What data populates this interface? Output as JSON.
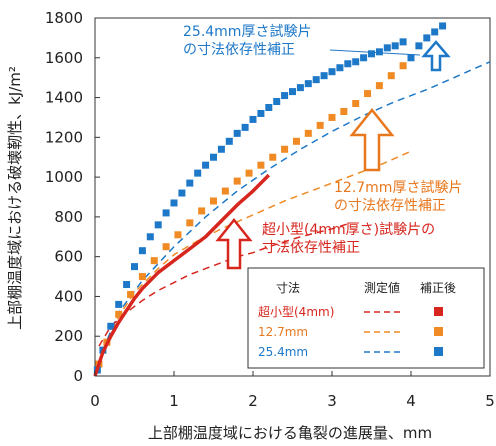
{
  "chart_data": {
    "type": "scatter",
    "xlabel": "上部棚温度域における亀裂の進展量、mm",
    "ylabel": "上部棚温度域における破壊靭性、kJ/m²",
    "xlim": [
      0,
      5
    ],
    "ylim": [
      0,
      1800
    ],
    "x_ticks": [
      "0",
      "1",
      "2",
      "3",
      "4",
      "5"
    ],
    "y_ticks": [
      "0",
      "200",
      "400",
      "600",
      "800",
      "1000",
      "1200",
      "1400",
      "1600",
      "1800"
    ],
    "grid": false,
    "legend": {
      "position": "bottom-right",
      "header_size": "寸法",
      "header_measured": "測定値",
      "header_corrected": "補正後",
      "entries": [
        "超小型(4mm)",
        "12.7mm",
        "25.4mm"
      ]
    },
    "annotations": [
      {
        "id": "a25",
        "lines": [
          "25.4mm厚さ試験片",
          "の寸法依存性補正"
        ],
        "color": "#1e78c8"
      },
      {
        "id": "a12",
        "lines": [
          "12.7mm厚さ試験片",
          "の寸法依存性補正"
        ],
        "color": "#e8781e"
      },
      {
        "id": "amini",
        "lines": [
          "超小型(4mm厚さ)試験片の",
          "寸法依存性補正"
        ],
        "color": "#d7261e"
      }
    ],
    "colors": {
      "mini": "#d7261e",
      "s12": "#f08a24",
      "s25": "#1e78c8"
    },
    "series": [
      {
        "id": "mini-measured",
        "kind": "dashed-line",
        "color": "#d7261e",
        "x": [
          0.05,
          0.2,
          0.4,
          0.6,
          0.8,
          1.0,
          1.2,
          1.4,
          1.6,
          1.8,
          2.0,
          2.2,
          2.4,
          2.6,
          2.8,
          3.0,
          3.2
        ],
        "y": [
          150,
          250,
          320,
          380,
          430,
          470,
          510,
          540,
          570,
          600,
          620,
          650,
          675,
          700,
          720,
          740,
          765
        ]
      },
      {
        "id": "mini-corrected",
        "kind": "thick-line",
        "color": "#d7261e",
        "x": [
          0.0,
          0.1,
          0.2,
          0.3,
          0.4,
          0.5,
          0.6,
          0.8,
          1.0,
          1.2,
          1.4,
          1.6,
          1.8,
          2.0,
          2.2
        ],
        "y": [
          0,
          120,
          200,
          270,
          330,
          390,
          440,
          520,
          580,
          640,
          700,
          780,
          860,
          930,
          1010
        ]
      },
      {
        "id": "s12-measured",
        "kind": "dashed-line",
        "color": "#f08a24",
        "x": [
          0.1,
          0.3,
          0.5,
          0.8,
          1.0,
          1.3,
          1.6,
          2.0,
          2.4,
          2.8,
          3.2,
          3.6,
          4.0
        ],
        "y": [
          120,
          300,
          420,
          540,
          610,
          680,
          740,
          810,
          880,
          940,
          1000,
          1060,
          1130
        ]
      },
      {
        "id": "s12-corrected",
        "kind": "squares",
        "color": "#f08a24",
        "x": [
          0.05,
          0.15,
          0.3,
          0.45,
          0.6,
          0.75,
          0.9,
          1.05,
          1.2,
          1.35,
          1.5,
          1.65,
          1.8,
          1.95,
          2.1,
          2.25,
          2.4,
          2.55,
          2.7,
          2.85,
          3.0,
          3.15,
          3.3,
          3.45,
          3.6,
          3.75,
          3.9
        ],
        "y": [
          60,
          170,
          310,
          410,
          500,
          580,
          650,
          710,
          770,
          830,
          880,
          930,
          980,
          1020,
          1060,
          1100,
          1140,
          1180,
          1220,
          1260,
          1300,
          1330,
          1370,
          1420,
          1460,
          1510,
          1560
        ]
      },
      {
        "id": "s25-measured",
        "kind": "dashed-line",
        "color": "#1e78c8",
        "x": [
          0.1,
          0.3,
          0.6,
          1.0,
          1.4,
          1.8,
          2.2,
          2.6,
          3.0,
          3.4,
          3.8,
          4.2,
          4.6,
          5.0
        ],
        "y": [
          130,
          320,
          480,
          650,
          800,
          930,
          1040,
          1140,
          1230,
          1310,
          1380,
          1440,
          1510,
          1580
        ]
      },
      {
        "id": "s25-corrected",
        "kind": "squares",
        "color": "#1e78c8",
        "x": [
          0.03,
          0.1,
          0.2,
          0.3,
          0.4,
          0.5,
          0.6,
          0.7,
          0.8,
          0.9,
          1.0,
          1.1,
          1.2,
          1.3,
          1.4,
          1.5,
          1.6,
          1.7,
          1.8,
          1.9,
          2.0,
          2.1,
          2.2,
          2.3,
          2.4,
          2.5,
          2.6,
          2.7,
          2.8,
          2.9,
          3.0,
          3.1,
          3.2,
          3.3,
          3.4,
          3.5,
          3.6,
          3.7,
          3.8,
          3.9,
          4.0,
          4.1,
          4.2,
          4.3,
          4.4
        ],
        "y": [
          30,
          130,
          250,
          360,
          460,
          550,
          630,
          700,
          760,
          820,
          870,
          920,
          970,
          1020,
          1060,
          1100,
          1140,
          1180,
          1220,
          1250,
          1290,
          1320,
          1350,
          1380,
          1410,
          1430,
          1450,
          1470,
          1490,
          1510,
          1530,
          1550,
          1570,
          1580,
          1600,
          1620,
          1630,
          1650,
          1660,
          1680,
          1600,
          1660,
          1700,
          1730,
          1760
        ]
      }
    ]
  }
}
